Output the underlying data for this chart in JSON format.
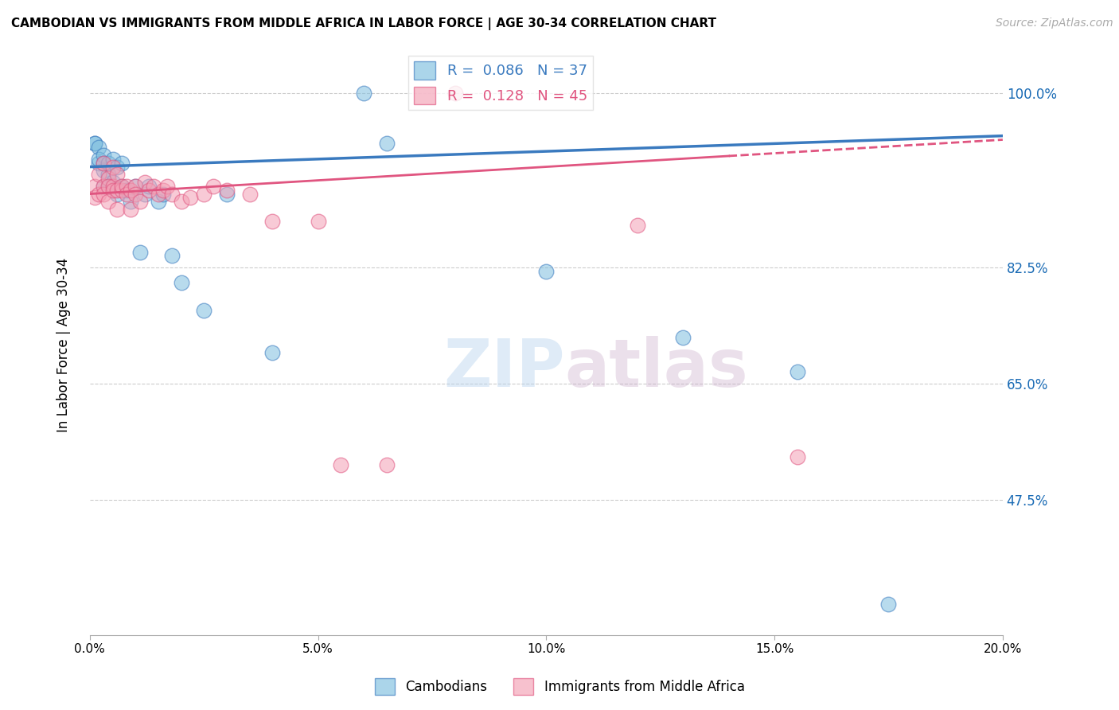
{
  "title": "CAMBODIAN VS IMMIGRANTS FROM MIDDLE AFRICA IN LABOR FORCE | AGE 30-34 CORRELATION CHART",
  "source": "Source: ZipAtlas.com",
  "ylabel": "In Labor Force | Age 30-34",
  "xlim": [
    0.0,
    0.2
  ],
  "ylim": [
    0.3,
    1.05
  ],
  "xtick_labels": [
    "0.0%",
    "5.0%",
    "10.0%",
    "15.0%",
    "20.0%"
  ],
  "grid_color": "#cccccc",
  "blue_color": "#7fbfdf",
  "pink_color": "#f4a0b5",
  "blue_line_color": "#3a7abf",
  "pink_line_color": "#e05580",
  "R_blue": 0.086,
  "N_blue": 37,
  "R_pink": 0.128,
  "N_pink": 45,
  "watermark_zip": "ZIP",
  "watermark_atlas": "atlas",
  "legend_label_blue": "Cambodians",
  "legend_label_pink": "Immigrants from Middle Africa",
  "blue_x": [
    0.001,
    0.001,
    0.002,
    0.002,
    0.002,
    0.003,
    0.003,
    0.003,
    0.003,
    0.004,
    0.004,
    0.004,
    0.005,
    0.005,
    0.006,
    0.006,
    0.007,
    0.007,
    0.008,
    0.009,
    0.01,
    0.011,
    0.012,
    0.013,
    0.015,
    0.016,
    0.018,
    0.02,
    0.025,
    0.03,
    0.04,
    0.06,
    0.065,
    0.1,
    0.13,
    0.155,
    0.175
  ],
  "blue_y": [
    0.935,
    0.935,
    0.93,
    0.91,
    0.915,
    0.9,
    0.92,
    0.88,
    0.91,
    0.895,
    0.91,
    0.88,
    0.915,
    0.885,
    0.905,
    0.87,
    0.88,
    0.91,
    0.875,
    0.86,
    0.88,
    0.795,
    0.87,
    0.88,
    0.86,
    0.87,
    0.79,
    0.755,
    0.72,
    0.87,
    0.665,
    1.0,
    0.935,
    0.77,
    0.685,
    0.64,
    0.34
  ],
  "pink_x": [
    0.001,
    0.001,
    0.002,
    0.002,
    0.003,
    0.003,
    0.003,
    0.004,
    0.004,
    0.004,
    0.005,
    0.005,
    0.005,
    0.006,
    0.006,
    0.006,
    0.007,
    0.007,
    0.008,
    0.008,
    0.009,
    0.009,
    0.01,
    0.01,
    0.011,
    0.012,
    0.013,
    0.014,
    0.015,
    0.016,
    0.017,
    0.018,
    0.02,
    0.022,
    0.025,
    0.027,
    0.03,
    0.035,
    0.04,
    0.05,
    0.055,
    0.065,
    0.08,
    0.12,
    0.155
  ],
  "pink_y": [
    0.88,
    0.865,
    0.895,
    0.87,
    0.88,
    0.87,
    0.91,
    0.89,
    0.86,
    0.88,
    0.88,
    0.905,
    0.875,
    0.875,
    0.895,
    0.85,
    0.875,
    0.88,
    0.88,
    0.87,
    0.875,
    0.85,
    0.88,
    0.87,
    0.86,
    0.885,
    0.875,
    0.88,
    0.87,
    0.875,
    0.88,
    0.87,
    0.86,
    0.865,
    0.87,
    0.88,
    0.875,
    0.87,
    0.835,
    0.835,
    0.52,
    0.52,
    1.0,
    0.83,
    0.53
  ]
}
